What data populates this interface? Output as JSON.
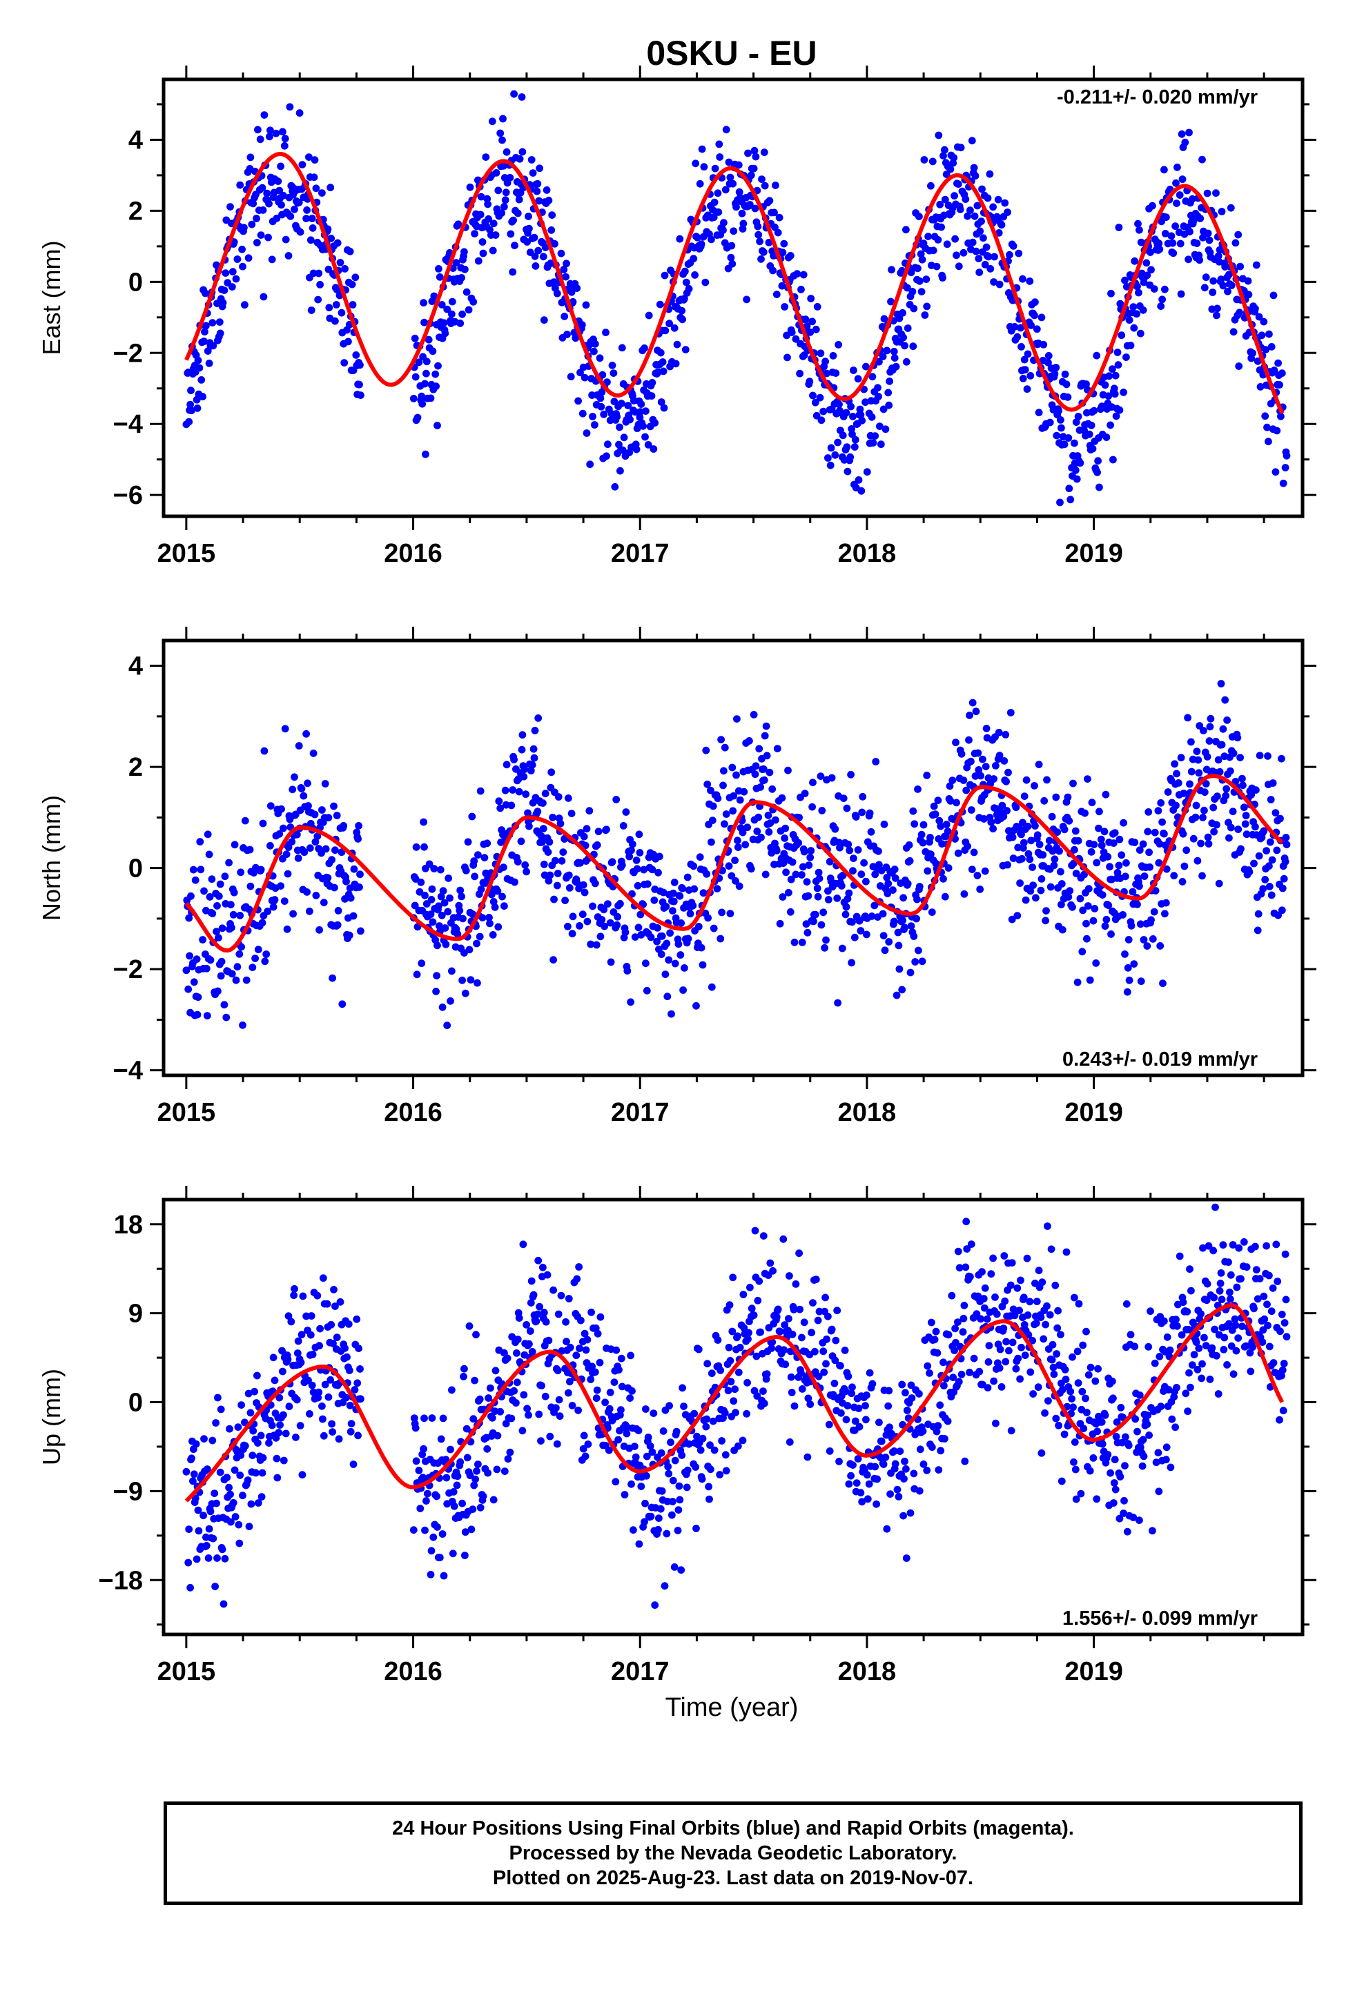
{
  "title": "0SKU - EU",
  "xlabel": "Time (year)",
  "caption": {
    "line1": "24 Hour Positions Using Final Orbits (blue) and Rapid Orbits (magenta).",
    "line2": "Processed by the Nevada Geodetic Laboratory.",
    "line3": "Plotted on 2025-Aug-23. Last data on 2019-Nov-07."
  },
  "colors": {
    "points": "#0000ff",
    "fit": "#ff0000",
    "axes": "#000000"
  },
  "chart_data": [
    {
      "type": "scatter",
      "ylabel": "East (mm)",
      "rate_text": "-0.211+/- 0.020 mm/yr",
      "rate_position": "top-right",
      "xlim": [
        2014.9,
        2019.92
      ],
      "ylim": [
        -6.6,
        5.7
      ],
      "xticks": [
        2015,
        2016,
        2017,
        2018,
        2019
      ],
      "yticks": [
        -6,
        -4,
        -2,
        0,
        2,
        4
      ],
      "data_range": [
        2015.0,
        2019.85
      ],
      "gap": [
        2015.77,
        2016.0
      ],
      "model": {
        "offset": -0.1,
        "trend": -0.211,
        "annual_amp": 3.2,
        "annual_peak": 2015.42,
        "semi_amp": 0.25,
        "semi_peak": 2015.2,
        "noise": 0.95,
        "seed": 11,
        "n": 1680
      },
      "fit_samples": [
        {
          "x": 2015.0,
          "y": -2.2
        },
        {
          "x": 2015.42,
          "y": 3.6
        },
        {
          "x": 2015.9,
          "y": -2.9
        },
        {
          "x": 2016.4,
          "y": 3.4
        },
        {
          "x": 2016.9,
          "y": -3.2
        },
        {
          "x": 2017.4,
          "y": 3.2
        },
        {
          "x": 2017.9,
          "y": -3.3
        },
        {
          "x": 2018.4,
          "y": 3.0
        },
        {
          "x": 2018.9,
          "y": -3.6
        },
        {
          "x": 2019.4,
          "y": 2.7
        },
        {
          "x": 2019.83,
          "y": -3.7
        }
      ]
    },
    {
      "type": "scatter",
      "ylabel": "North (mm)",
      "rate_text": "0.243+/- 0.019 mm/yr",
      "rate_position": "bottom-right",
      "xlim": [
        2014.9,
        2019.92
      ],
      "ylim": [
        -4.1,
        4.5
      ],
      "xticks": [
        2015,
        2016,
        2017,
        2018,
        2019
      ],
      "yticks": [
        -4,
        -2,
        0,
        2,
        4
      ],
      "data_range": [
        2015.0,
        2019.85
      ],
      "gap": [
        2015.77,
        2016.0
      ],
      "model": {
        "offset": -0.55,
        "trend": 0.243,
        "annual_amp": 0.85,
        "annual_peak": 2015.55,
        "semi_amp": 0.45,
        "semi_peak": 2015.48,
        "noise": 0.85,
        "seed": 23,
        "n": 1680
      },
      "fit_samples": [
        {
          "x": 2015.0,
          "y": -0.7
        },
        {
          "x": 2015.2,
          "y": -1.6
        },
        {
          "x": 2015.5,
          "y": 0.8
        },
        {
          "x": 2016.2,
          "y": -1.4
        },
        {
          "x": 2016.5,
          "y": 1.0
        },
        {
          "x": 2017.2,
          "y": -1.2
        },
        {
          "x": 2017.5,
          "y": 1.3
        },
        {
          "x": 2018.2,
          "y": -0.9
        },
        {
          "x": 2018.5,
          "y": 1.6
        },
        {
          "x": 2019.2,
          "y": -0.6
        },
        {
          "x": 2019.5,
          "y": 1.8
        },
        {
          "x": 2019.83,
          "y": 0.5
        }
      ]
    },
    {
      "type": "scatter",
      "ylabel": "Up (mm)",
      "rate_text": "1.556+/- 0.099 mm/yr",
      "rate_position": "bottom-right",
      "xlim": [
        2014.9,
        2019.92
      ],
      "ylim": [
        -23.5,
        20.5
      ],
      "xticks": [
        2015,
        2016,
        2017,
        2018,
        2019
      ],
      "yticks": [
        -18,
        -9,
        0,
        9,
        18
      ],
      "data_range": [
        2015.0,
        2019.85
      ],
      "gap": [
        2015.77,
        2016.0
      ],
      "model": {
        "offset": -3.4,
        "trend": 1.556,
        "annual_amp": 7.0,
        "annual_peak": 2015.6,
        "semi_amp": 1.0,
        "semi_peak": 2015.35,
        "noise": 4.3,
        "seed": 37,
        "n": 1680
      },
      "fit_samples": [
        {
          "x": 2015.0,
          "y": -10.0
        },
        {
          "x": 2015.6,
          "y": 3.6
        },
        {
          "x": 2016.0,
          "y": -8.6
        },
        {
          "x": 2016.6,
          "y": 5.1
        },
        {
          "x": 2017.0,
          "y": -7.0
        },
        {
          "x": 2017.6,
          "y": 6.6
        },
        {
          "x": 2018.0,
          "y": -5.4
        },
        {
          "x": 2018.6,
          "y": 8.2
        },
        {
          "x": 2019.0,
          "y": -3.8
        },
        {
          "x": 2019.6,
          "y": 9.8
        },
        {
          "x": 2019.83,
          "y": 0.0
        }
      ]
    }
  ]
}
